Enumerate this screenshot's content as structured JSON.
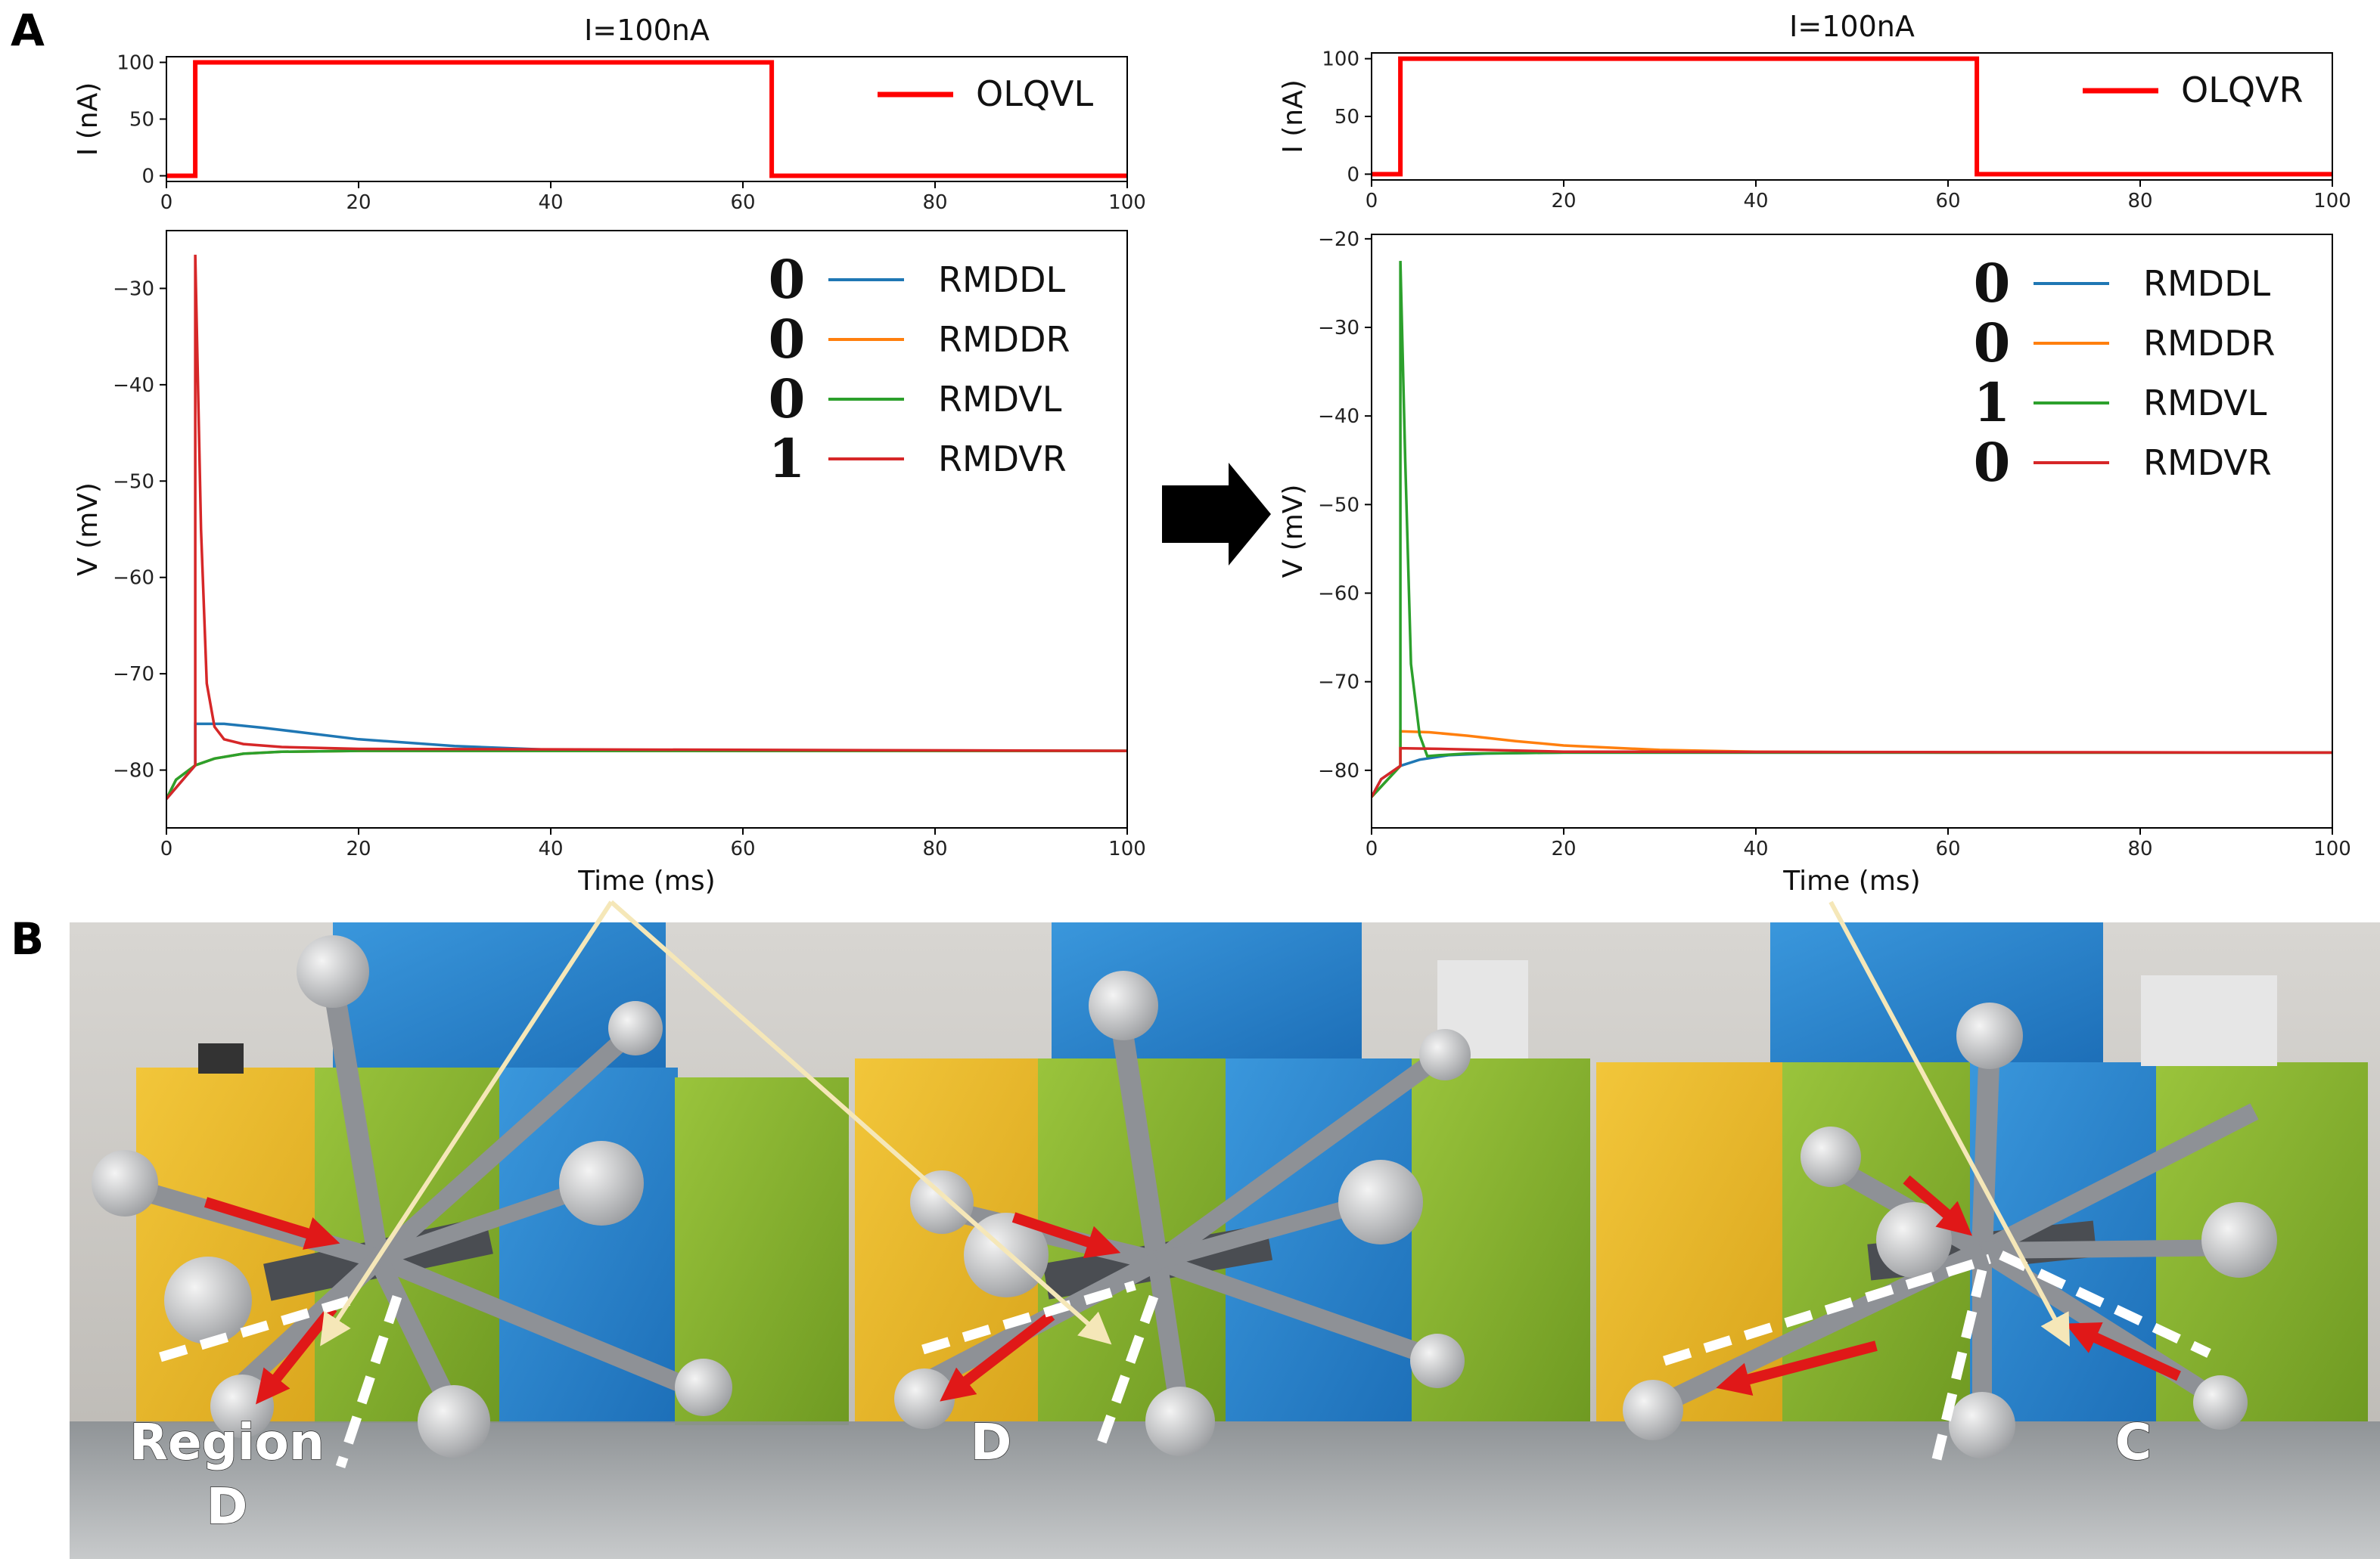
{
  "panels": {
    "a_label": "A",
    "b_label": "B"
  },
  "colors": {
    "RMDDL": "#1f77b4",
    "RMDDR": "#ff7f0e",
    "RMDVL": "#2ca02c",
    "RMDVR": "#d62728",
    "stimulus": "#ff0000",
    "arrow": "#000000"
  },
  "chart_data": [
    {
      "type": "line",
      "title": "I=100nA",
      "xlabel": "",
      "ylabel": "I (nA)",
      "xlim": [
        0,
        100
      ],
      "ylim": [
        -5,
        105
      ],
      "xticks": [
        0,
        20,
        40,
        60,
        80,
        100
      ],
      "yticks": [
        0,
        50,
        100
      ],
      "legend": "upper-right",
      "series": [
        {
          "name": "OLQVL",
          "x": [
            0,
            3,
            3,
            63,
            63,
            100
          ],
          "y": [
            0,
            0,
            100,
            100,
            0,
            0
          ]
        }
      ]
    },
    {
      "type": "line",
      "title": "",
      "xlabel": "Time (ms)",
      "ylabel": "V (mV)",
      "xlim": [
        0,
        100
      ],
      "ylim": [
        -86,
        -24
      ],
      "xticks": [
        0,
        20,
        40,
        60,
        80,
        100
      ],
      "yticks": [
        -80,
        -70,
        -60,
        -50,
        -40,
        -30
      ],
      "legend": "upper-right",
      "series": [
        {
          "name": "RMDDL",
          "state": "0",
          "x": [
            0,
            3,
            3,
            6,
            10,
            15,
            20,
            30,
            40,
            60,
            100
          ],
          "y": [
            -83,
            -79.5,
            -75.2,
            -75.2,
            -75.6,
            -76.2,
            -76.8,
            -77.5,
            -77.9,
            -78,
            -78
          ]
        },
        {
          "name": "RMDDR",
          "state": "0",
          "x": [
            0,
            1,
            3,
            5,
            8,
            12,
            20,
            40,
            100
          ],
          "y": [
            -83,
            -81,
            -79.5,
            -78.8,
            -78.3,
            -78.1,
            -78,
            -78,
            -78
          ]
        },
        {
          "name": "RMDVL",
          "state": "0",
          "x": [
            0,
            1,
            3,
            5,
            8,
            12,
            20,
            40,
            100
          ],
          "y": [
            -83,
            -81,
            -79.5,
            -78.8,
            -78.3,
            -78.1,
            -78,
            -78,
            -78
          ]
        },
        {
          "name": "RMDVR",
          "state": "1",
          "x": [
            0,
            3,
            3,
            3.6,
            4.2,
            5,
            6,
            8,
            12,
            20,
            100
          ],
          "y": [
            -83,
            -79.5,
            -26.5,
            -55,
            -71,
            -75.5,
            -76.8,
            -77.3,
            -77.6,
            -77.8,
            -78
          ]
        }
      ]
    },
    {
      "type": "line",
      "title": "I=100nA",
      "xlabel": "",
      "ylabel": "I (nA)",
      "xlim": [
        0,
        100
      ],
      "ylim": [
        -5,
        105
      ],
      "xticks": [
        0,
        20,
        40,
        60,
        80,
        100
      ],
      "yticks": [
        0,
        50,
        100
      ],
      "legend": "upper-right",
      "series": [
        {
          "name": "OLQVR",
          "x": [
            0,
            3,
            3,
            63,
            63,
            100
          ],
          "y": [
            0,
            0,
            100,
            100,
            0,
            0
          ]
        }
      ]
    },
    {
      "type": "line",
      "title": "",
      "xlabel": "Time (ms)",
      "ylabel": "V (mV)",
      "xlim": [
        0,
        100
      ],
      "ylim": [
        -86.5,
        -19.5
      ],
      "xticks": [
        0,
        20,
        40,
        60,
        80,
        100
      ],
      "yticks": [
        -80,
        -70,
        -60,
        -50,
        -40,
        -30,
        -20
      ],
      "legend": "upper-right",
      "series": [
        {
          "name": "RMDDL",
          "state": "0",
          "x": [
            0,
            1,
            3,
            5,
            8,
            12,
            20,
            40,
            100
          ],
          "y": [
            -83,
            -81,
            -79.5,
            -78.8,
            -78.3,
            -78.1,
            -78,
            -78,
            -78
          ]
        },
        {
          "name": "RMDDR",
          "state": "0",
          "x": [
            0,
            3,
            3,
            6,
            10,
            15,
            20,
            30,
            40,
            60,
            100
          ],
          "y": [
            -83,
            -79.5,
            -75.6,
            -75.7,
            -76.1,
            -76.7,
            -77.2,
            -77.7,
            -77.9,
            -78,
            -78
          ]
        },
        {
          "name": "RMDVL",
          "state": "1",
          "x": [
            0,
            3,
            3,
            3.5,
            4.1,
            5,
            5.8,
            7,
            10,
            20,
            100
          ],
          "y": [
            -83,
            -79.5,
            -22.5,
            -45,
            -68,
            -76,
            -78.4,
            -78.3,
            -78.1,
            -78,
            -78
          ]
        },
        {
          "name": "RMDVR",
          "state": "0",
          "x": [
            0,
            1,
            3,
            3,
            8,
            20,
            100
          ],
          "y": [
            -83,
            -81,
            -79.5,
            -77.5,
            -77.6,
            -77.9,
            -78
          ]
        }
      ]
    }
  ],
  "photo_labels": {
    "frame1": "Region\nD",
    "frame2": "D",
    "frame3": "C"
  }
}
